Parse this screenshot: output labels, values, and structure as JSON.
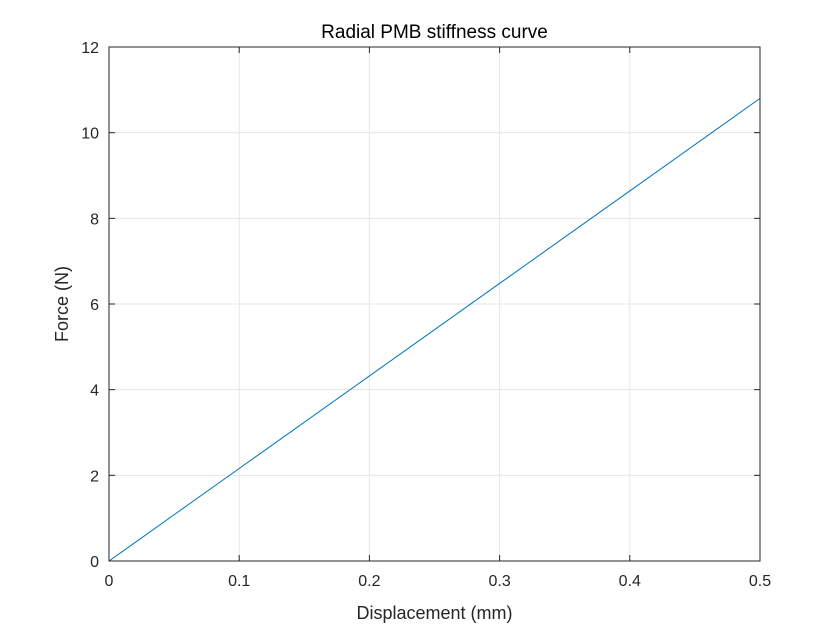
{
  "chart_data": {
    "type": "line",
    "title": "Radial PMB stiffness curve",
    "xlabel": "Displacement (mm)",
    "ylabel": "Force (N)",
    "xlim": [
      0,
      0.5
    ],
    "ylim": [
      0,
      12
    ],
    "xticks": [
      "0",
      "0.1",
      "0.2",
      "0.3",
      "0.4",
      "0.5"
    ],
    "yticks": [
      "0",
      "2",
      "4",
      "6",
      "8",
      "10",
      "12"
    ],
    "grid": true,
    "series": [
      {
        "color": "#0072BD",
        "x": [
          0,
          0.1,
          0.2,
          0.3,
          0.4,
          0.5
        ],
        "y": [
          0,
          2.16,
          4.32,
          6.48,
          8.64,
          10.8
        ]
      }
    ]
  },
  "colors": {
    "axis": "#262626",
    "grid": "#e6e6e6",
    "background": "#ffffff"
  }
}
